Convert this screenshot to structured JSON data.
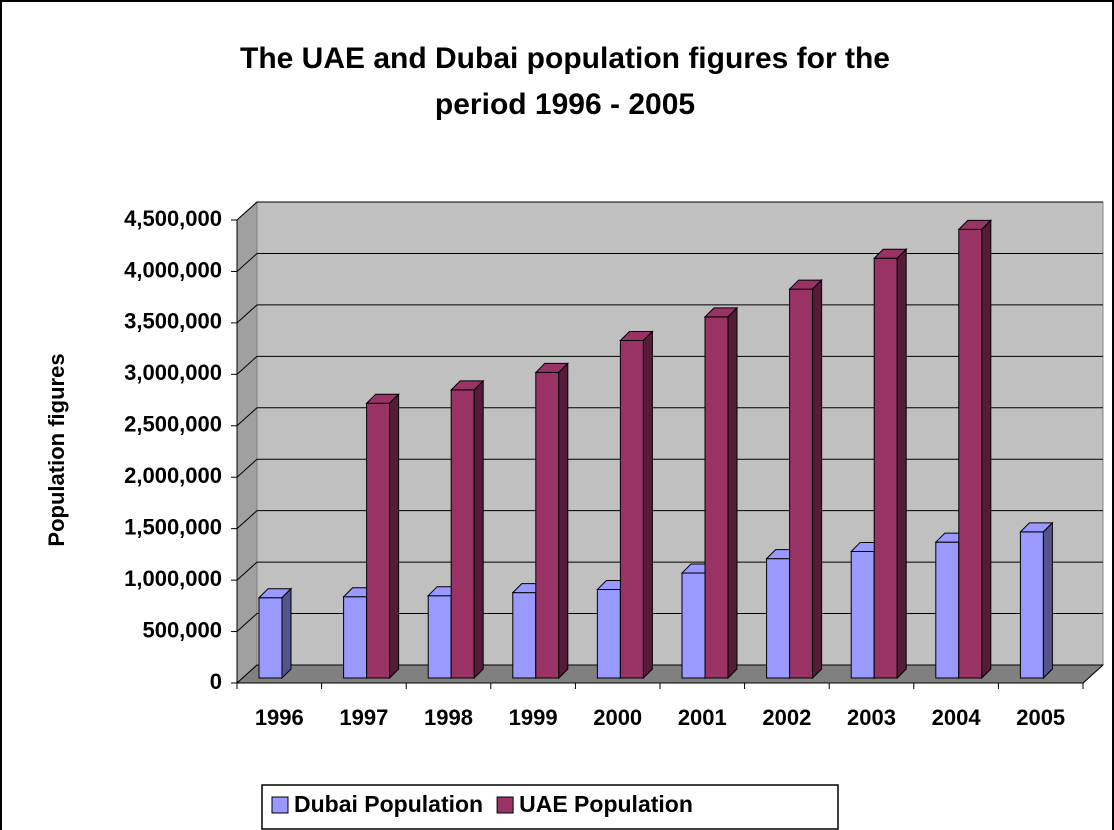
{
  "chart_data": {
    "type": "bar3d",
    "title": "The UAE and Dubai population figures for the",
    "subtitle": "period 1996 - 2005",
    "y_label": "Population figures",
    "categories": [
      "1996",
      "1997",
      "1998",
      "1999",
      "2000",
      "2001",
      "2002",
      "2003",
      "2004",
      "2005"
    ],
    "series": [
      {
        "name": "Dubai Population",
        "color": "#9999ff",
        "values": [
          780000,
          790000,
          800000,
          830000,
          860000,
          1020000,
          1160000,
          1230000,
          1320000,
          1420000
        ]
      },
      {
        "name": "UAE Population",
        "color": "#993366",
        "values": [
          null,
          2670000,
          2800000,
          2970000,
          3280000,
          3510000,
          3780000,
          4080000,
          4360000,
          null
        ]
      }
    ],
    "ylim": [
      0,
      4500000
    ],
    "yticks": [
      0,
      {
        "value": 500000,
        "label": "500,000"
      },
      {
        "value": 1000000,
        "label": "1,000,000"
      },
      {
        "value": 1500000,
        "label": "1,500,000"
      },
      {
        "value": 2000000,
        "label": "2,000,000"
      },
      {
        "value": 2500000,
        "label": "2,500,000"
      },
      {
        "value": 3000000,
        "label": "3,000,000"
      },
      {
        "value": 3500000,
        "label": "3,500,000"
      },
      {
        "value": 4000000,
        "label": "4,000,000"
      },
      {
        "value": 4500000,
        "label": "4,500,000"
      }
    ],
    "grid": true,
    "legend": "bottom"
  }
}
